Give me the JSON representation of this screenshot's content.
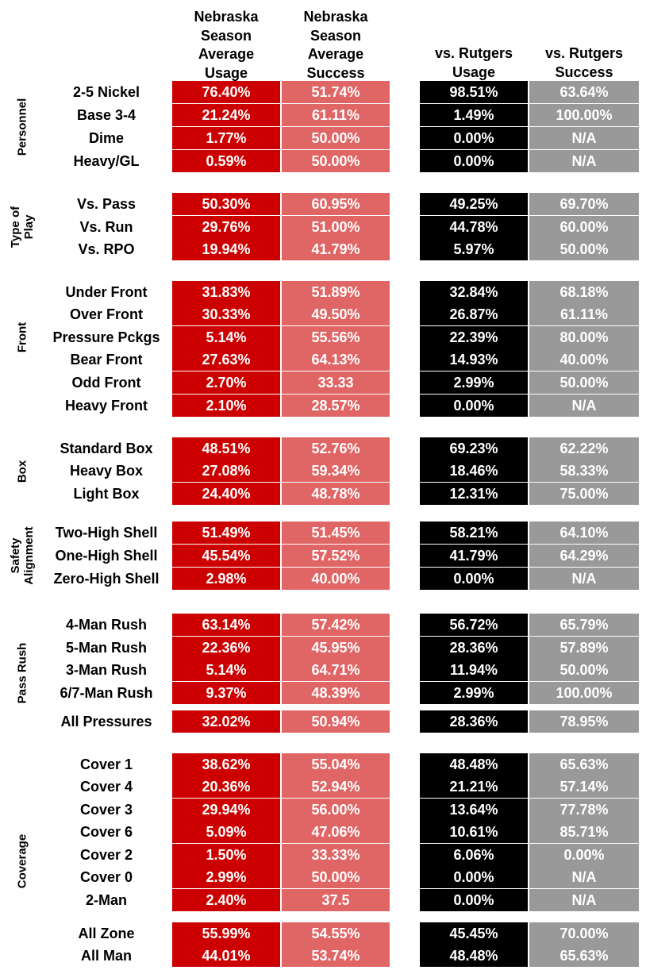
{
  "headers": {
    "season_usage": [
      "Nebraska",
      "Season",
      "Average",
      "Usage"
    ],
    "season_success": [
      "Nebraska",
      "Season",
      "Average",
      "Success"
    ],
    "rutgers_usage": [
      "vs. Rutgers",
      "Usage"
    ],
    "rutgers_success": [
      "vs. Rutgers",
      "Success"
    ]
  },
  "colors": {
    "season_usage": "#cc0000",
    "season_success": "#e06666",
    "rutgers_usage": "#000000",
    "rutgers_success": "#999999"
  },
  "chart_data": {
    "type": "table",
    "columns": [
      "Nebraska Season Average Usage",
      "Nebraska Season Average Success",
      "vs. Rutgers Usage",
      "vs. Rutgers Success"
    ],
    "groups": [
      {
        "name": [
          "Personnel"
        ],
        "rows": [
          {
            "label": "2-5 Nickel",
            "values": [
              "76.40%",
              "51.74%",
              "98.51%",
              "63.64%"
            ]
          },
          {
            "label": "Base 3-4",
            "values": [
              "21.24%",
              "61.11%",
              "1.49%",
              "100.00%"
            ]
          },
          {
            "label": "Dime",
            "values": [
              "1.77%",
              "50.00%",
              "0.00%",
              "N/A"
            ]
          },
          {
            "label": "Heavy/GL",
            "values": [
              "0.59%",
              "50.00%",
              "0.00%",
              "N/A"
            ]
          }
        ]
      },
      {
        "name": [
          "Type of",
          "Play"
        ],
        "rows": [
          {
            "label": "Vs. Pass",
            "values": [
              "50.30%",
              "60.95%",
              "49.25%",
              "69.70%"
            ]
          },
          {
            "label": "Vs. Run",
            "values": [
              "29.76%",
              "51.00%",
              "44.78%",
              "60.00%"
            ]
          },
          {
            "label": "Vs. RPO",
            "values": [
              "19.94%",
              "41.79%",
              "5.97%",
              "50.00%"
            ]
          }
        ]
      },
      {
        "name": [
          "Front"
        ],
        "rows": [
          {
            "label": "Under Front",
            "values": [
              "31.83%",
              "51.89%",
              "32.84%",
              "68.18%"
            ]
          },
          {
            "label": "Over Front",
            "values": [
              "30.33%",
              "49.50%",
              "26.87%",
              "61.11%"
            ]
          },
          {
            "label": "Pressure Pckgs",
            "values": [
              "5.14%",
              "55.56%",
              "22.39%",
              "80.00%"
            ]
          },
          {
            "label": "Bear Front",
            "values": [
              "27.63%",
              "64.13%",
              "14.93%",
              "40.00%"
            ]
          },
          {
            "label": "Odd Front",
            "values": [
              "2.70%",
              "33.33",
              "2.99%",
              "50.00%"
            ]
          },
          {
            "label": "Heavy Front",
            "values": [
              "2.10%",
              "28.57%",
              "0.00%",
              "N/A"
            ]
          }
        ]
      },
      {
        "name": [
          "Box"
        ],
        "rows": [
          {
            "label": "Standard Box",
            "values": [
              "48.51%",
              "52.76%",
              "69.23%",
              "62.22%"
            ]
          },
          {
            "label": "Heavy Box",
            "values": [
              "27.08%",
              "59.34%",
              "18.46%",
              "58.33%"
            ]
          },
          {
            "label": "Light Box",
            "values": [
              "24.40%",
              "48.78%",
              "12.31%",
              "75.00%"
            ]
          }
        ]
      },
      {
        "name": [
          "Safety",
          "Alignment"
        ],
        "rows": [
          {
            "label": "Two-High Shell",
            "values": [
              "51.49%",
              "51.45%",
              "58.21%",
              "64.10%"
            ]
          },
          {
            "label": "One-High Shell",
            "values": [
              "45.54%",
              "57.52%",
              "41.79%",
              "64.29%"
            ]
          },
          {
            "label": "Zero-High Shell",
            "values": [
              "2.98%",
              "40.00%",
              "0.00%",
              "N/A"
            ]
          }
        ]
      },
      {
        "name": [
          "Pass Rush"
        ],
        "rows": [
          {
            "label": "4-Man Rush",
            "values": [
              "63.14%",
              "57.42%",
              "56.72%",
              "65.79%"
            ]
          },
          {
            "label": "5-Man Rush",
            "values": [
              "22.36%",
              "45.95%",
              "28.36%",
              "57.89%"
            ]
          },
          {
            "label": "3-Man Rush",
            "values": [
              "5.14%",
              "64.71%",
              "11.94%",
              "50.00%"
            ]
          },
          {
            "label": "6/7-Man Rush",
            "values": [
              "9.37%",
              "48.39%",
              "2.99%",
              "100.00%"
            ]
          },
          {
            "label": "All Pressures",
            "values": [
              "32.02%",
              "50.94%",
              "28.36%",
              "78.95%"
            ]
          }
        ]
      },
      {
        "name": [
          "Coverage"
        ],
        "rows": [
          {
            "label": "Cover 1",
            "values": [
              "38.62%",
              "55.04%",
              "48.48%",
              "65.63%"
            ]
          },
          {
            "label": "Cover 4",
            "values": [
              "20.36%",
              "52.94%",
              "21.21%",
              "57.14%"
            ]
          },
          {
            "label": "Cover 3",
            "values": [
              "29.94%",
              "56.00%",
              "13.64%",
              "77.78%"
            ]
          },
          {
            "label": "Cover 6",
            "values": [
              "5.09%",
              "47.06%",
              "10.61%",
              "85.71%"
            ]
          },
          {
            "label": "Cover 2",
            "values": [
              "1.50%",
              "33.33%",
              "6.06%",
              "0.00%"
            ]
          },
          {
            "label": "Cover 0",
            "values": [
              "2.99%",
              "50.00%",
              "0.00%",
              "N/A"
            ]
          },
          {
            "label": "2-Man",
            "values": [
              "2.40%",
              "37.5",
              "0.00%",
              "N/A"
            ]
          },
          {
            "label": "All Zone",
            "values": [
              "55.99%",
              "54.55%",
              "45.45%",
              "70.00%"
            ]
          },
          {
            "label": "All Man",
            "values": [
              "44.01%",
              "53.74%",
              "48.48%",
              "65.63%"
            ]
          }
        ]
      }
    ]
  }
}
